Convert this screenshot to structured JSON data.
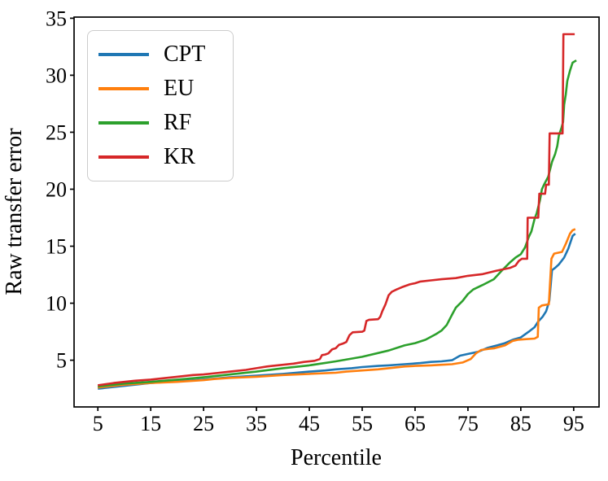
{
  "chart_data": {
    "type": "line",
    "title": "",
    "xlabel": "Percentile",
    "ylabel": "Raw transfer error",
    "xlim": [
      0.5,
      99.8
    ],
    "ylim": [
      0.9,
      35.1
    ],
    "xticks": [
      5,
      15,
      25,
      35,
      45,
      55,
      65,
      75,
      85,
      95
    ],
    "yticks": [
      5,
      10,
      15,
      20,
      25,
      30,
      35
    ],
    "grid": false,
    "legend_position": "upper left",
    "line_width": 2.6,
    "spine_color": "#000000",
    "series": [
      {
        "name": "CPT",
        "color": "#1f77b4",
        "points": [
          [
            5,
            2.5
          ],
          [
            8,
            2.65
          ],
          [
            10,
            2.75
          ],
          [
            15,
            3.0
          ],
          [
            20,
            3.15
          ],
          [
            25,
            3.3
          ],
          [
            30,
            3.5
          ],
          [
            35,
            3.65
          ],
          [
            40,
            3.8
          ],
          [
            45,
            4.0
          ],
          [
            48,
            4.1
          ],
          [
            50,
            4.2
          ],
          [
            53,
            4.3
          ],
          [
            55,
            4.4
          ],
          [
            58,
            4.5
          ],
          [
            60,
            4.55
          ],
          [
            63,
            4.65
          ],
          [
            66,
            4.75
          ],
          [
            68,
            4.85
          ],
          [
            70,
            4.9
          ],
          [
            72,
            5.0
          ],
          [
            73.5,
            5.4
          ],
          [
            75,
            5.55
          ],
          [
            77,
            5.75
          ],
          [
            78.8,
            6.1
          ],
          [
            80.5,
            6.3
          ],
          [
            82,
            6.5
          ],
          [
            83.5,
            6.8
          ],
          [
            85,
            7.0
          ],
          [
            86.5,
            7.5
          ],
          [
            87.6,
            7.9
          ],
          [
            88.3,
            8.4
          ],
          [
            89.1,
            8.8
          ],
          [
            89.8,
            9.3
          ],
          [
            90.4,
            10.2
          ],
          [
            90.9,
            12.9
          ],
          [
            91.5,
            13.1
          ],
          [
            92.2,
            13.4
          ],
          [
            93.2,
            14.0
          ],
          [
            94,
            14.8
          ],
          [
            94.8,
            15.9
          ],
          [
            95.3,
            16.1
          ]
        ]
      },
      {
        "name": "EU",
        "color": "#ff7f0e",
        "points": [
          [
            5,
            2.6
          ],
          [
            8,
            2.75
          ],
          [
            10,
            2.85
          ],
          [
            15,
            3.0
          ],
          [
            20,
            3.1
          ],
          [
            25,
            3.25
          ],
          [
            27,
            3.35
          ],
          [
            30,
            3.45
          ],
          [
            35,
            3.55
          ],
          [
            40,
            3.7
          ],
          [
            45,
            3.8
          ],
          [
            50,
            3.9
          ],
          [
            52,
            4.0
          ],
          [
            55,
            4.1
          ],
          [
            58,
            4.2
          ],
          [
            60,
            4.3
          ],
          [
            63,
            4.45
          ],
          [
            65,
            4.5
          ],
          [
            68,
            4.55
          ],
          [
            70,
            4.6
          ],
          [
            72,
            4.65
          ],
          [
            74,
            4.8
          ],
          [
            75.5,
            5.1
          ],
          [
            76.5,
            5.6
          ],
          [
            77.5,
            5.9
          ],
          [
            79,
            6.0
          ],
          [
            80,
            6.05
          ],
          [
            82,
            6.3
          ],
          [
            83.5,
            6.7
          ],
          [
            84.5,
            6.8
          ],
          [
            86,
            6.85
          ],
          [
            87.6,
            6.9
          ],
          [
            88.2,
            7.05
          ],
          [
            88.4,
            9.6
          ],
          [
            89,
            9.8
          ],
          [
            90.3,
            9.9
          ],
          [
            90.8,
            13.9
          ],
          [
            91.3,
            14.35
          ],
          [
            92.8,
            14.5
          ],
          [
            93.5,
            15.2
          ],
          [
            94.3,
            16.1
          ],
          [
            94.8,
            16.4
          ],
          [
            95.3,
            16.5
          ]
        ]
      },
      {
        "name": "RF",
        "color": "#2ca02c",
        "points": [
          [
            5,
            2.7
          ],
          [
            10,
            2.95
          ],
          [
            15,
            3.1
          ],
          [
            20,
            3.3
          ],
          [
            25,
            3.5
          ],
          [
            30,
            3.75
          ],
          [
            35,
            4.0
          ],
          [
            40,
            4.3
          ],
          [
            45,
            4.55
          ],
          [
            50,
            4.9
          ],
          [
            55,
            5.3
          ],
          [
            60,
            5.85
          ],
          [
            63,
            6.3
          ],
          [
            65,
            6.5
          ],
          [
            67,
            6.8
          ],
          [
            69,
            7.3
          ],
          [
            70,
            7.6
          ],
          [
            71,
            8.1
          ],
          [
            72,
            9.0
          ],
          [
            72.7,
            9.6
          ],
          [
            74,
            10.2
          ],
          [
            75,
            10.8
          ],
          [
            76,
            11.2
          ],
          [
            77.8,
            11.6
          ],
          [
            79.9,
            12.1
          ],
          [
            81.5,
            12.9
          ],
          [
            83,
            13.6
          ],
          [
            84,
            14.0
          ],
          [
            85,
            14.3
          ],
          [
            85.8,
            14.9
          ],
          [
            86.5,
            15.8
          ],
          [
            87,
            16.3
          ],
          [
            87.6,
            17.4
          ],
          [
            88,
            17.9
          ],
          [
            88.6,
            19.0
          ],
          [
            89,
            20.0
          ],
          [
            89.4,
            20.4
          ],
          [
            90.2,
            21.1
          ],
          [
            90.9,
            22.4
          ],
          [
            91.5,
            23.1
          ],
          [
            91.9,
            23.8
          ],
          [
            92.2,
            24.7
          ],
          [
            92.7,
            25.4
          ],
          [
            93,
            25.9
          ],
          [
            93.2,
            27.4
          ],
          [
            93.5,
            28.3
          ],
          [
            93.8,
            29.5
          ],
          [
            94.3,
            30.4
          ],
          [
            94.8,
            31.1
          ],
          [
            95.5,
            31.3
          ]
        ]
      },
      {
        "name": "KR",
        "color": "#d62728",
        "points": [
          [
            5,
            2.8
          ],
          [
            8,
            3.0
          ],
          [
            10,
            3.1
          ],
          [
            12,
            3.2
          ],
          [
            15,
            3.3
          ],
          [
            18,
            3.45
          ],
          [
            20,
            3.55
          ],
          [
            23,
            3.7
          ],
          [
            25,
            3.75
          ],
          [
            28,
            3.9
          ],
          [
            30,
            4.0
          ],
          [
            33,
            4.15
          ],
          [
            35,
            4.3
          ],
          [
            37,
            4.45
          ],
          [
            38,
            4.5
          ],
          [
            40,
            4.6
          ],
          [
            42,
            4.7
          ],
          [
            44,
            4.85
          ],
          [
            46,
            4.95
          ],
          [
            47,
            5.1
          ],
          [
            47.4,
            5.45
          ],
          [
            48,
            5.5
          ],
          [
            48.6,
            5.6
          ],
          [
            49.3,
            5.95
          ],
          [
            50,
            6.05
          ],
          [
            50.6,
            6.35
          ],
          [
            51.3,
            6.45
          ],
          [
            52,
            6.6
          ],
          [
            52.6,
            7.2
          ],
          [
            53.2,
            7.45
          ],
          [
            55,
            7.5
          ],
          [
            55.4,
            7.6
          ],
          [
            55.8,
            8.45
          ],
          [
            56.3,
            8.55
          ],
          [
            58,
            8.6
          ],
          [
            58.4,
            8.8
          ],
          [
            58.8,
            9.3
          ],
          [
            59.4,
            9.9
          ],
          [
            60,
            10.7
          ],
          [
            60.6,
            11.0
          ],
          [
            61.5,
            11.2
          ],
          [
            62.5,
            11.4
          ],
          [
            64,
            11.65
          ],
          [
            65,
            11.75
          ],
          [
            66,
            11.9
          ],
          [
            68,
            12.0
          ],
          [
            70,
            12.1
          ],
          [
            72.7,
            12.2
          ],
          [
            75,
            12.4
          ],
          [
            77.8,
            12.55
          ],
          [
            80.4,
            12.85
          ],
          [
            83,
            13.1
          ],
          [
            84,
            13.3
          ],
          [
            84.6,
            13.7
          ],
          [
            85.2,
            13.9
          ],
          [
            86.2,
            13.9
          ],
          [
            86.3,
            17.5
          ],
          [
            88.3,
            17.5
          ],
          [
            88.5,
            19.6
          ],
          [
            89.6,
            19.6
          ],
          [
            89.8,
            20.4
          ],
          [
            90.3,
            20.4
          ],
          [
            90.45,
            24.9
          ],
          [
            92.9,
            24.9
          ],
          [
            93.05,
            33.6
          ],
          [
            95.2,
            33.6
          ]
        ]
      }
    ]
  }
}
